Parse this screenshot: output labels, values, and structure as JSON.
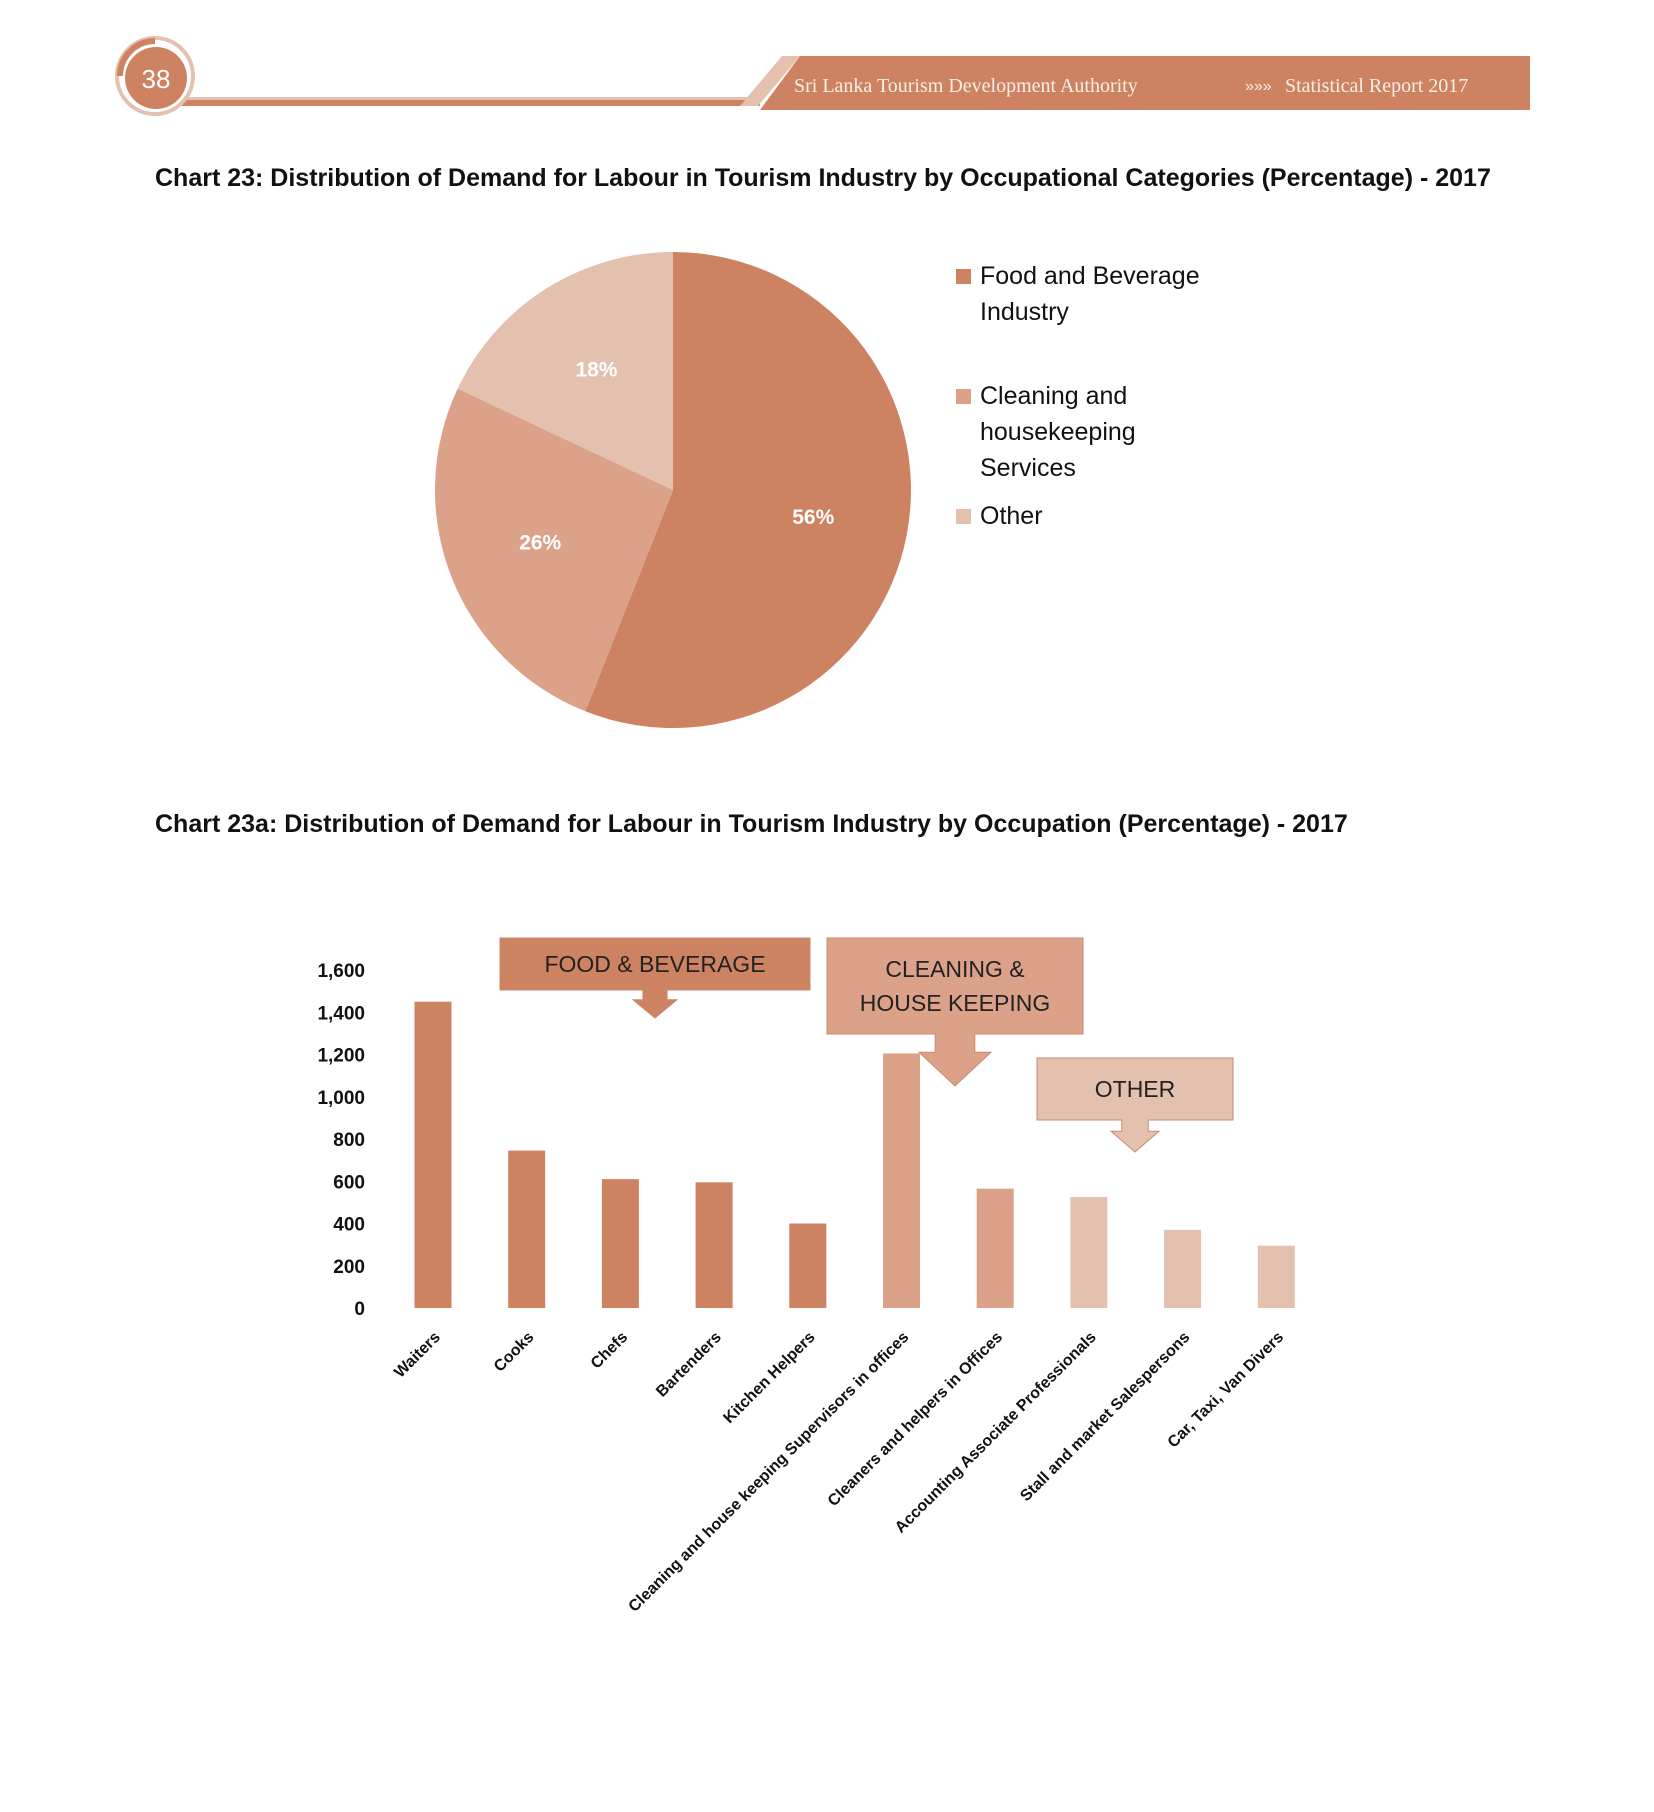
{
  "header": {
    "page_number": "38",
    "running_title": "Sri Lanka Tourism Development Authority",
    "separator": "»»»",
    "report_name": "Statistical Report 2017",
    "accent": "#cd8262",
    "accent_light": "#e4c0af"
  },
  "chart_data": [
    {
      "type": "pie",
      "title": "Chart 23: Distribution of Demand for Labour in  Tourism Industry by Occupational Categories (Percentage) - 2017",
      "slices": [
        {
          "label": "Food and Beverage Industry",
          "legend_lines": [
            "Food and Beverage",
            "Industry"
          ],
          "value": 56,
          "display": "56%",
          "color": "#cd8262"
        },
        {
          "label": "Cleaning and housekeeping Services",
          "legend_lines": [
            "Cleaning and",
            "housekeeping",
            "Services"
          ],
          "value": 26,
          "display": "26%",
          "color": "#dba189"
        },
        {
          "label": "Other",
          "legend_lines": [
            "Other"
          ],
          "value": 18,
          "display": "18%",
          "color": "#e4c0af"
        }
      ],
      "legend_placement": "right"
    },
    {
      "type": "bar",
      "title": "Chart 23a: Distribution of Demand for Labour in  Tourism Industry by Occupation (Percentage) - 2017",
      "categories": [
        "Waiters",
        "Cooks",
        "Chefs",
        "Bartenders",
        "Kitchen Helpers",
        "Cleaning and house keeping Supervisors in offices",
        "Cleaners and helpers in Offices",
        "Accounting Associate Professionals",
        "Stall and market Salespersons",
        "Car, Taxi, Van Divers"
      ],
      "values": [
        1450,
        745,
        610,
        595,
        400,
        1205,
        565,
        525,
        370,
        295
      ],
      "groups": [
        0,
        0,
        0,
        0,
        0,
        1,
        1,
        2,
        2,
        2
      ],
      "group_colors": [
        "#cd8262",
        "#dba189",
        "#e4c0af"
      ],
      "ylim": [
        0,
        1600
      ],
      "yticks": [
        0,
        200,
        400,
        600,
        800,
        1000,
        1200,
        1400,
        1600
      ],
      "ytick_labels": [
        "0",
        "200",
        "400",
        "600",
        "800",
        "1,000",
        "1,200",
        "1,400",
        "1,600"
      ],
      "grid": false,
      "callouts": [
        {
          "lines": [
            "FOOD & BEVERAGE"
          ],
          "color": "#cd8262"
        },
        {
          "lines": [
            "CLEANING &",
            "HOUSE KEEPING"
          ],
          "color": "#dba189"
        },
        {
          "lines": [
            "OTHER"
          ],
          "color": "#e4c0af"
        }
      ]
    }
  ]
}
